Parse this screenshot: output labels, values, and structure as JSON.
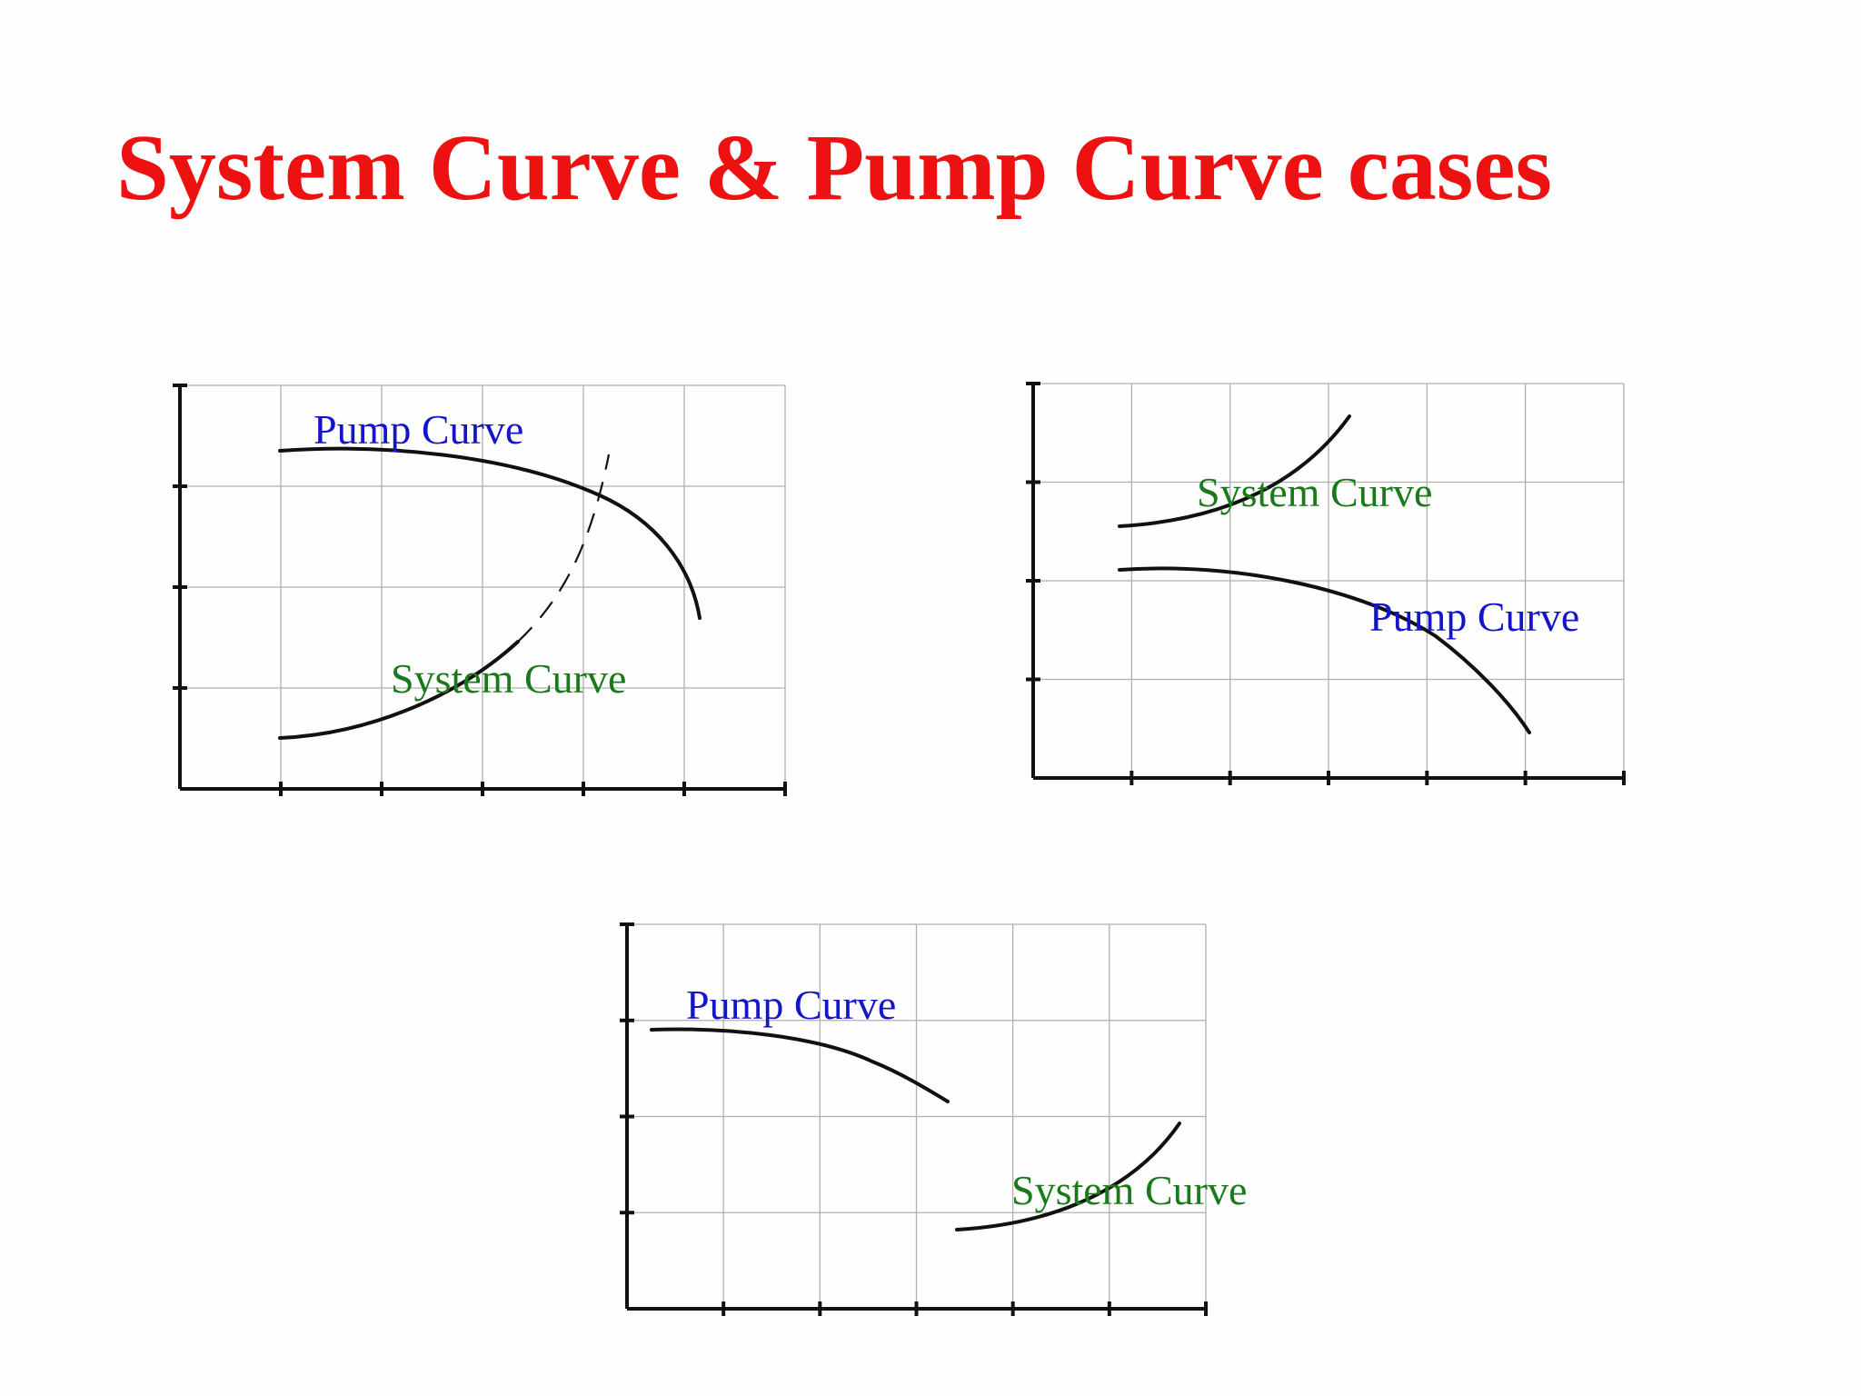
{
  "title": "System Curve & Pump Curve cases",
  "colors": {
    "title": "#ee1111",
    "pump_label": "#1414c8",
    "system_label": "#1a7a1a",
    "curves": "#111111",
    "grid": "#b0b0b0"
  },
  "charts": [
    {
      "pump_label": "Pump Curve",
      "system_label": "System Curve"
    },
    {
      "pump_label": "Pump Curve",
      "system_label": "System Curve"
    },
    {
      "pump_label": "Pump Curve",
      "system_label": "System Curve"
    }
  ]
}
